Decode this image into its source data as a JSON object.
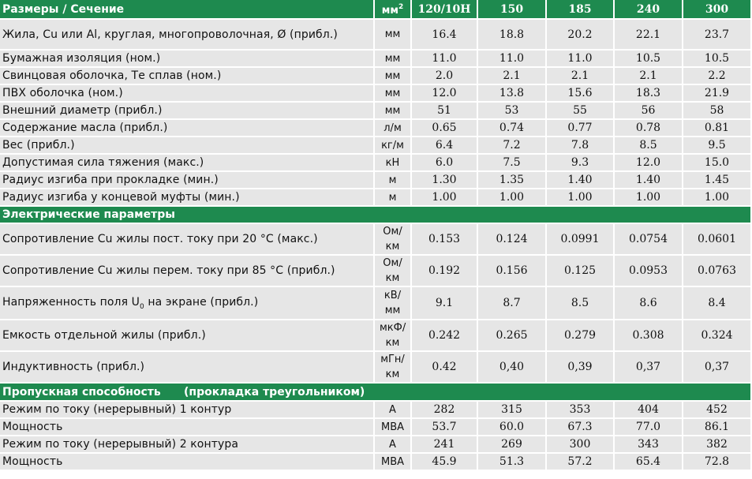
{
  "header": {
    "title": "Размеры / Сечение",
    "unit_base": "мм",
    "unit_sup": "2",
    "columns": [
      "120/10H",
      "150",
      "185",
      "240",
      "300"
    ]
  },
  "sections": [
    {
      "title": "",
      "rows": [
        {
          "label": "Жила, Cu или Al, круглая, многопроволочная, Ø (прибл.)",
          "unit": "мм",
          "values": [
            "16.4",
            "18.8",
            "20.2",
            "22.1",
            "23.7"
          ]
        },
        {
          "label": "Бумажная изоляция (ном.)",
          "unit": "мм",
          "values": [
            "11.0",
            "11.0",
            "11.0",
            "10.5",
            "10.5"
          ]
        },
        {
          "label": "Свинцовая оболочка, Те сплав (ном.)",
          "unit": "мм",
          "values": [
            "2.0",
            "2.1",
            "2.1",
            "2.1",
            "2.2"
          ]
        },
        {
          "label": "ПВХ оболочка (ном.)",
          "unit": "мм",
          "values": [
            "12.0",
            "13.8",
            "15.6",
            "18.3",
            "21.9"
          ]
        },
        {
          "label": "Внешний диаметр (прибл.)",
          "unit": "мм",
          "values": [
            "51",
            "53",
            "55",
            "56",
            "58"
          ]
        },
        {
          "label": "Содержание масла (прибл.)",
          "unit": "л/м",
          "values": [
            "0.65",
            "0.74",
            "0.77",
            "0.78",
            "0.81"
          ]
        },
        {
          "label": "Вес (прибл.)",
          "unit": "кг/м",
          "values": [
            "6.4",
            "7.2",
            "7.8",
            "8.5",
            "9.5"
          ]
        },
        {
          "label": "Допустимая сила тяжения (макс.)",
          "unit": "кН",
          "values": [
            "6.0",
            "7.5",
            "9.3",
            "12.0",
            "15.0"
          ]
        },
        {
          "label": "Радиус изгиба при прокладке (мин.)",
          "unit": "м",
          "values": [
            "1.30",
            "1.35",
            "1.40",
            "1.40",
            "1.45"
          ]
        },
        {
          "label": "Радиус изгиба у концевой муфты (мин.)",
          "unit": "м",
          "values": [
            "1.00",
            "1.00",
            "1.00",
            "1.00",
            "1.00"
          ]
        }
      ]
    },
    {
      "title": "Электрические параметры",
      "rows": [
        {
          "label": "Сопротивление Cu жилы пост. току при 20 °C (макс.)",
          "unit": "Ом/ км",
          "values": [
            "0.153",
            "0.124",
            "0.0991",
            "0.0754",
            "0.0601"
          ]
        },
        {
          "label": "Сопротивление Cu жилы перем. току при 85 °C (прибл.)",
          "unit": "Ом/ км",
          "values": [
            "0.192",
            "0.156",
            "0.125",
            "0.0953",
            "0.0763"
          ]
        },
        {
          "label": "Напряженность поля U",
          "label_sub": "0",
          "label_tail": " на экране (прибл.)",
          "unit": "кВ/ мм",
          "values": [
            "9.1",
            "8.7",
            "8.5",
            "8.6",
            "8.4"
          ]
        },
        {
          "label": "Емкость отдельной жилы (прибл.)",
          "unit": "мкФ/ км",
          "values": [
            "0.242",
            "0.265",
            "0.279",
            "0.308",
            "0.324"
          ]
        },
        {
          "label": "Индуктивность (прибл.)",
          "unit": "мГн/ км",
          "values": [
            "0.42",
            "0,40",
            "0,39",
            "0,37",
            "0,37"
          ]
        }
      ]
    },
    {
      "title": "Пропускная способность      (прокладка треугольником)",
      "rows": [
        {
          "label": "Режим по току (нерерывный) 1 контур",
          "unit": "A",
          "values": [
            "282",
            "315",
            "353",
            "404",
            "452"
          ]
        },
        {
          "label": "Мощность",
          "unit": "MBA",
          "values": [
            "53.7",
            "60.0",
            "67.3",
            "77.0",
            "86.1"
          ]
        },
        {
          "label": "Режим по току (нерерывный) 2 контура",
          "unit": "A",
          "values": [
            "241",
            "269",
            "300",
            "343",
            "382"
          ]
        },
        {
          "label": "Мощность",
          "unit": "MBA",
          "values": [
            "45.9",
            "51.3",
            "57.2",
            "65.4",
            "72.8"
          ]
        }
      ]
    }
  ]
}
